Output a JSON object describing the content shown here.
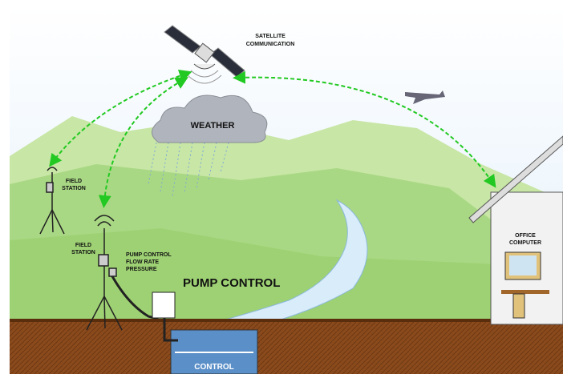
{
  "labels": {
    "satellite": [
      "SATELLITE",
      "COMMUNICATION"
    ],
    "weather": "WEATHER",
    "field_station_1": [
      "FIELD",
      "STATION"
    ],
    "field_station_2": [
      "FIELD",
      "STATION"
    ],
    "pump_sensors": [
      "PUMP CONTROL",
      "FLOW RATE",
      "PRESSURE"
    ],
    "pump_control": "PUMP CONTROL",
    "office": [
      "OFFICE",
      "COMPUTER"
    ],
    "control": "CONTROL"
  }
}
